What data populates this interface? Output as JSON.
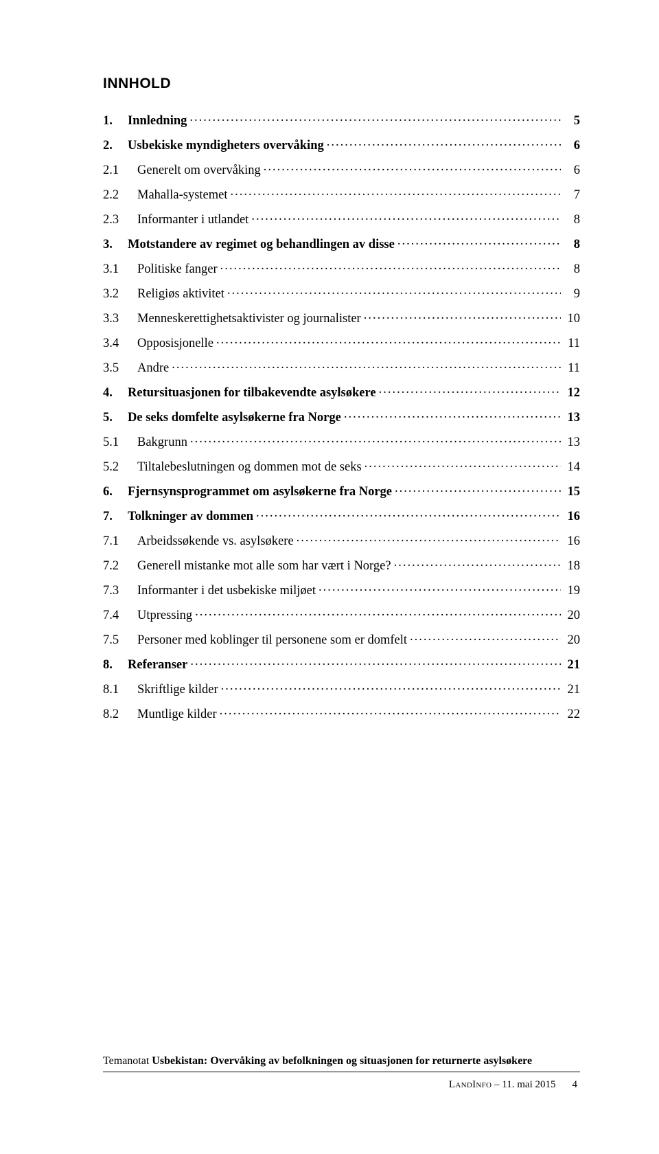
{
  "title": "INNHOLD",
  "toc": [
    {
      "level": 1,
      "num": "1.",
      "label": "Innledning",
      "page": "5"
    },
    {
      "level": 1,
      "num": "2.",
      "label": "Usbekiske myndigheters overvåking",
      "page": "6"
    },
    {
      "level": 2,
      "num": "2.1",
      "label": "Generelt om overvåking",
      "page": "6"
    },
    {
      "level": 2,
      "num": "2.2",
      "label": "Mahalla-systemet",
      "page": "7"
    },
    {
      "level": 2,
      "num": "2.3",
      "label": "Informanter i utlandet",
      "page": "8"
    },
    {
      "level": 1,
      "num": "3.",
      "label": "Motstandere av regimet og behandlingen av disse",
      "page": "8"
    },
    {
      "level": 2,
      "num": "3.1",
      "label": "Politiske fanger",
      "page": "8"
    },
    {
      "level": 2,
      "num": "3.2",
      "label": "Religiøs aktivitet",
      "page": "9"
    },
    {
      "level": 2,
      "num": "3.3",
      "label": "Menneskerettighetsaktivister og journalister",
      "page": "10"
    },
    {
      "level": 2,
      "num": "3.4",
      "label": "Opposisjonelle",
      "page": "11"
    },
    {
      "level": 2,
      "num": "3.5",
      "label": "Andre",
      "page": "11"
    },
    {
      "level": 1,
      "num": "4.",
      "label": "Retursituasjonen for tilbakevendte asylsøkere",
      "page": "12"
    },
    {
      "level": 1,
      "num": "5.",
      "label": "De seks domfelte asylsøkerne fra Norge",
      "page": "13"
    },
    {
      "level": 2,
      "num": "5.1",
      "label": "Bakgrunn",
      "page": "13"
    },
    {
      "level": 2,
      "num": "5.2",
      "label": "Tiltalebeslutningen og dommen mot de seks",
      "page": "14"
    },
    {
      "level": 1,
      "num": "6.",
      "label": "Fjernsynsprogrammet om asylsøkerne fra Norge",
      "page": "15"
    },
    {
      "level": 1,
      "num": "7.",
      "label": "Tolkninger av dommen",
      "page": "16"
    },
    {
      "level": 2,
      "num": "7.1",
      "label": "Arbeidssøkende vs. asylsøkere",
      "page": "16"
    },
    {
      "level": 2,
      "num": "7.2",
      "label": "Generell mistanke mot alle som har vært i Norge?",
      "page": "18"
    },
    {
      "level": 2,
      "num": "7.3",
      "label": "Informanter i det usbekiske miljøet",
      "page": "19"
    },
    {
      "level": 2,
      "num": "7.4",
      "label": "Utpressing",
      "page": "20"
    },
    {
      "level": 2,
      "num": "7.5",
      "label": "Personer med koblinger til personene som er domfelt",
      "page": "20"
    },
    {
      "level": 1,
      "num": "8.",
      "label": "Referanser",
      "page": "21"
    },
    {
      "level": 2,
      "num": "8.1",
      "label": "Skriftlige kilder",
      "page": "21"
    },
    {
      "level": 2,
      "num": "8.2",
      "label": "Muntlige kilder",
      "page": "22"
    }
  ],
  "footer": {
    "prefix": "Temanotat ",
    "bold": "Usbekistan: Overvåking av befolkningen og situasjonen for returnerte asylsøkere",
    "source": "LandInfo",
    "date": "– 11. mai 2015",
    "pagenum": "4"
  },
  "colors": {
    "text": "#000000",
    "background": "#ffffff",
    "rule": "#000000"
  },
  "fonts": {
    "title_family": "Arial",
    "title_size_pt": 16,
    "body_family": "Times New Roman",
    "body_size_pt": 14,
    "footer_size_pt": 12
  }
}
